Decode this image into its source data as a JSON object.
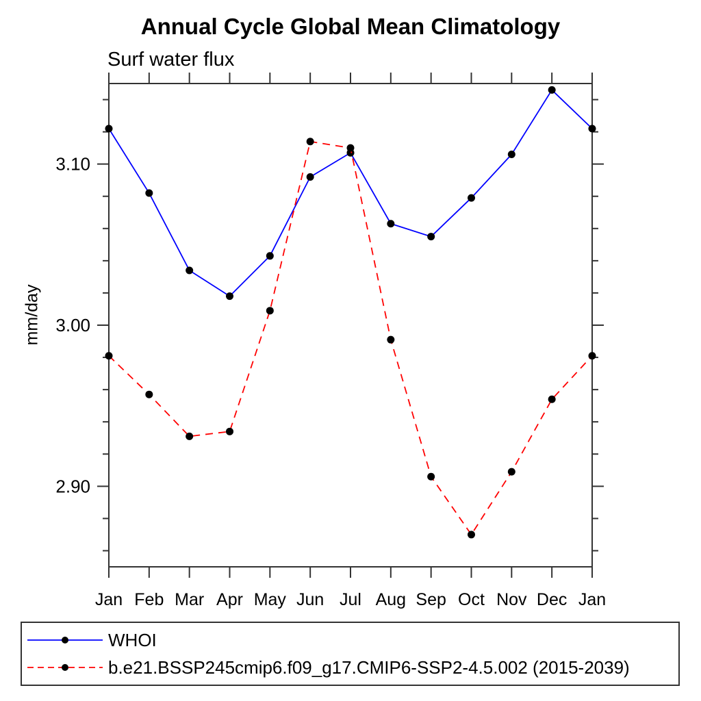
{
  "chart_data": {
    "type": "line",
    "title": "Annual Cycle Global Mean Climatology",
    "subtitle": "Surf water flux",
    "ylabel": "mm/day",
    "x_categories": [
      "Jan",
      "Feb",
      "Mar",
      "Apr",
      "May",
      "Jun",
      "Jul",
      "Aug",
      "Sep",
      "Oct",
      "Nov",
      "Dec",
      "Jan"
    ],
    "y_axis": {
      "min": 2.85,
      "max": 3.15,
      "major_ticks": [
        2.9,
        3.0,
        3.1
      ],
      "major_tick_labels": [
        "2.90",
        "3.00",
        "3.10"
      ],
      "minor_tick_step": 0.02
    },
    "grid": false,
    "legend_position": "bottom",
    "axis_color": "#333333",
    "marker_color": "#000000",
    "series": [
      {
        "name": "WHOI",
        "color": "#0000ff",
        "line_style": "solid",
        "marker": "black-dot",
        "values": [
          3.122,
          3.082,
          3.034,
          3.018,
          3.043,
          3.092,
          3.107,
          3.063,
          3.055,
          3.079,
          3.106,
          3.146,
          3.122
        ]
      },
      {
        "name": "b.e21.BSSP245cmip6.f09_g17.CMIP6-SSP2-4.5.002 (2015-2039)",
        "color": "#ff0000",
        "line_style": "dashed",
        "marker": "black-dot",
        "values": [
          2.981,
          2.957,
          2.931,
          2.934,
          3.009,
          3.114,
          3.11,
          2.991,
          2.906,
          2.87,
          2.909,
          2.954,
          2.981
        ]
      }
    ]
  }
}
